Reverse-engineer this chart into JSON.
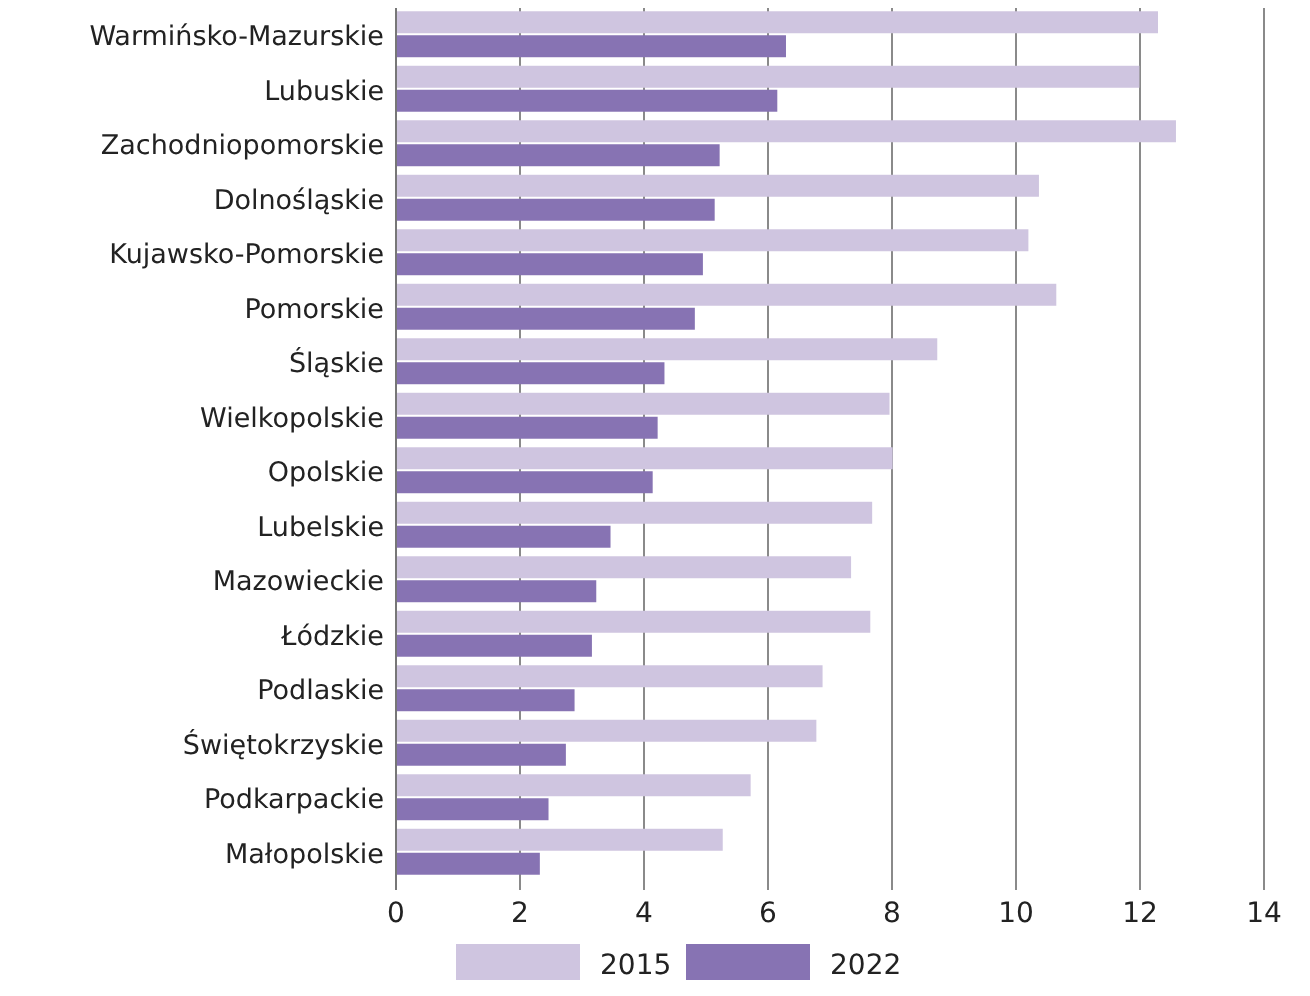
{
  "chart_data": {
    "type": "bar",
    "orientation": "horizontal",
    "categories": [
      "Warmińsko-Mazurskie",
      "Lubuskie",
      "Zachodniopomorskie",
      "Dolnośląskie",
      "Kujawsko-Pomorskie",
      "Pomorskie",
      "Śląskie",
      "Wielkopolskie",
      "Opolskie",
      "Lubelskie",
      "Mazowieckie",
      "Łódzkie",
      "Podlaskie",
      "Świętokrzyskie",
      "Podkarpackie",
      "Małopolskie"
    ],
    "series": [
      {
        "name": "2015",
        "color": "#cfc5e0",
        "values": [
          12.29,
          11.99,
          12.58,
          10.37,
          10.2,
          10.65,
          8.73,
          7.96,
          8.01,
          7.68,
          7.34,
          7.65,
          6.88,
          6.78,
          5.72,
          5.27
        ]
      },
      {
        "name": "2022",
        "color": "#8773b3",
        "values": [
          6.29,
          6.15,
          5.22,
          5.14,
          4.95,
          4.82,
          4.33,
          4.22,
          4.14,
          3.46,
          3.23,
          3.16,
          2.88,
          2.74,
          2.46,
          2.32
        ]
      }
    ],
    "xlim": [
      0,
      14
    ],
    "xticks": [
      0,
      2,
      4,
      6,
      8,
      10,
      12,
      14
    ],
    "grid": "x",
    "legend": "bottom"
  }
}
